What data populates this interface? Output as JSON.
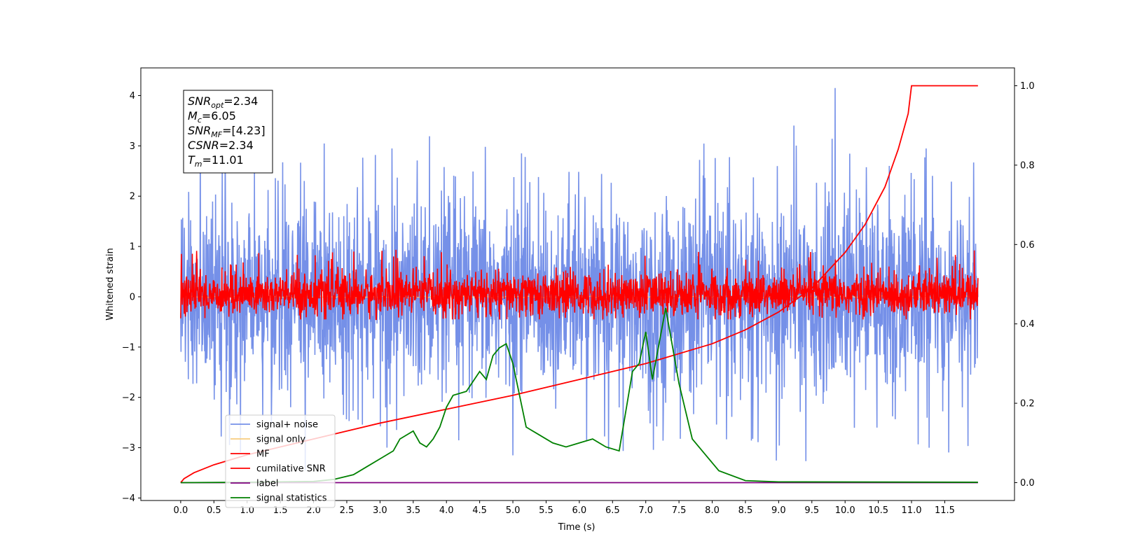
{
  "chart_data": {
    "type": "line",
    "xlabel": "Time (s)",
    "ylabel": "Whitened strain",
    "xlim": [
      -0.6,
      12.55
    ],
    "ylim_left": [
      -4.05,
      4.55
    ],
    "ylim_right": [
      -0.045,
      1.045
    ],
    "x_ticks": [
      0.0,
      0.5,
      1.0,
      1.5,
      2.0,
      2.5,
      3.0,
      3.5,
      4.0,
      4.5,
      5.0,
      5.5,
      6.0,
      6.5,
      7.0,
      7.5,
      8.0,
      8.5,
      9.0,
      9.5,
      10.0,
      10.5,
      11.0,
      11.5
    ],
    "x_tick_labels": [
      "0.0",
      "0.5",
      "1.0",
      "1.5",
      "2.0",
      "2.5",
      "3.0",
      "3.5",
      "4.0",
      "4.5",
      "5.0",
      "5.5",
      "6.0",
      "6.5",
      "7.0",
      "7.5",
      "8.0",
      "8.5",
      "9.0",
      "9.5",
      "10.0",
      "10.5",
      "11.0",
      "11.5"
    ],
    "y_left_ticks": [
      -4,
      -3,
      -2,
      -1,
      0,
      1,
      2,
      3,
      4
    ],
    "y_left_tick_labels": [
      "−4",
      "−3",
      "−2",
      "−1",
      "0",
      "1",
      "2",
      "3",
      "4"
    ],
    "y_right_ticks": [
      0.0,
      0.2,
      0.4,
      0.6,
      0.8,
      1.0
    ],
    "y_right_tick_labels": [
      "0.0",
      "0.2",
      "0.4",
      "0.6",
      "0.8",
      "1.0"
    ],
    "grid": false,
    "legend_position": "bottom-left",
    "series": [
      {
        "name": "signal+ noise",
        "color": "#7590e8",
        "axis": "left",
        "style": "dense noise, roughly ±2 peaks up to 4.15 near t=9.85",
        "x_range": [
          0.0,
          12.0
        ]
      },
      {
        "name": "signal only",
        "color": "#f7cc7e",
        "axis": "left",
        "x_range": [
          0.0,
          12.0
        ],
        "values_note": "hidden beneath other series"
      },
      {
        "name": "MF",
        "color": "#ff0000",
        "axis": "left",
        "style": "dense noise, roughly -0.45 to 1.0",
        "x_range": [
          0.0,
          12.0
        ]
      },
      {
        "name": "cumilative SNR",
        "color": "#ff0000",
        "axis": "right",
        "x": [
          0.0,
          0.05,
          0.2,
          0.5,
          1.0,
          2.0,
          3.0,
          4.0,
          5.0,
          6.0,
          7.0,
          8.0,
          8.5,
          9.0,
          9.5,
          10.0,
          10.3,
          10.6,
          10.8,
          10.95,
          11.0,
          12.0
        ],
        "y": [
          0.0,
          0.01,
          0.025,
          0.045,
          0.07,
          0.11,
          0.15,
          0.185,
          0.22,
          0.26,
          0.3,
          0.35,
          0.385,
          0.43,
          0.49,
          0.58,
          0.65,
          0.745,
          0.84,
          0.93,
          1.0,
          1.0
        ]
      },
      {
        "name": "label",
        "color": "#800080",
        "axis": "right",
        "x": [
          0.0,
          12.0
        ],
        "y": [
          0.0,
          0.0
        ]
      },
      {
        "name": "signal statistics",
        "color": "#008000",
        "axis": "right",
        "x": [
          0.0,
          1.0,
          2.0,
          2.3,
          2.6,
          2.8,
          3.0,
          3.2,
          3.3,
          3.5,
          3.6,
          3.7,
          3.8,
          3.9,
          4.0,
          4.1,
          4.3,
          4.5,
          4.6,
          4.7,
          4.8,
          4.9,
          5.0,
          5.2,
          5.4,
          5.6,
          5.8,
          6.0,
          6.2,
          6.4,
          6.6,
          6.8,
          6.9,
          7.0,
          7.1,
          7.2,
          7.3,
          7.5,
          7.7,
          7.9,
          8.1,
          8.5,
          9.0,
          12.0
        ],
        "y": [
          0.0,
          0.001,
          0.003,
          0.008,
          0.02,
          0.04,
          0.06,
          0.08,
          0.11,
          0.13,
          0.1,
          0.09,
          0.11,
          0.14,
          0.19,
          0.22,
          0.23,
          0.28,
          0.26,
          0.32,
          0.34,
          0.35,
          0.3,
          0.14,
          0.12,
          0.1,
          0.09,
          0.1,
          0.11,
          0.09,
          0.08,
          0.28,
          0.3,
          0.38,
          0.26,
          0.35,
          0.44,
          0.25,
          0.11,
          0.07,
          0.03,
          0.005,
          0.002,
          0.001
        ]
      }
    ],
    "annotation": {
      "lines": [
        {
          "main": "SNR",
          "sub": "opt",
          "rest": "=2.34"
        },
        {
          "main": "M",
          "sub": "c",
          "rest": "=6.05"
        },
        {
          "main": "SNR",
          "sub": "MF",
          "rest": "=[4.23]"
        },
        {
          "main": "CSNR",
          "sub": "",
          "rest": "=2.34"
        },
        {
          "main": "T",
          "sub": "m",
          "rest": "=11.01"
        }
      ]
    }
  }
}
